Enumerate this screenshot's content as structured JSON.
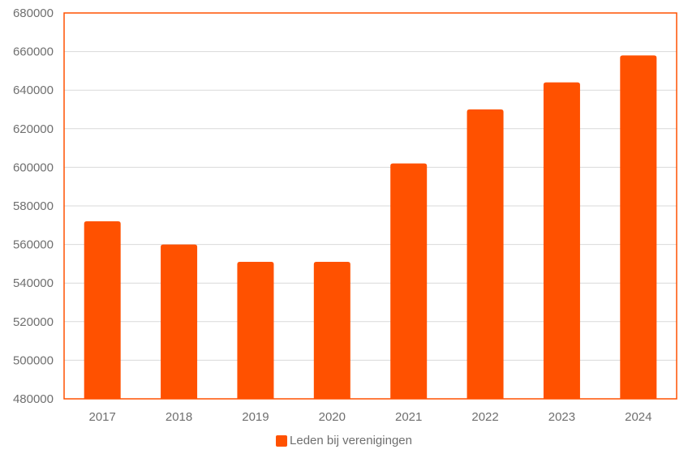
{
  "chart_data": {
    "type": "bar",
    "categories": [
      "2017",
      "2018",
      "2019",
      "2020",
      "2021",
      "2022",
      "2023",
      "2024"
    ],
    "series": [
      {
        "name": "Leden bij verenigingen",
        "values": [
          572000,
          560000,
          551000,
          551000,
          602000,
          630000,
          644000,
          658000
        ]
      }
    ],
    "y_tick_labels": [
      "480000",
      "500000",
      "520000",
      "540000",
      "560000",
      "580000",
      "600000",
      "620000",
      "640000",
      "660000",
      "680000"
    ],
    "ylim": [
      480000,
      680000
    ],
    "title": "",
    "xlabel": "",
    "ylabel": "",
    "grid": true,
    "legend_position": "bottom",
    "colors": {
      "bar": "#FF5100",
      "frame": "#FF5100",
      "grid": "#d9d9d9",
      "text": "#6f6f6f"
    }
  }
}
